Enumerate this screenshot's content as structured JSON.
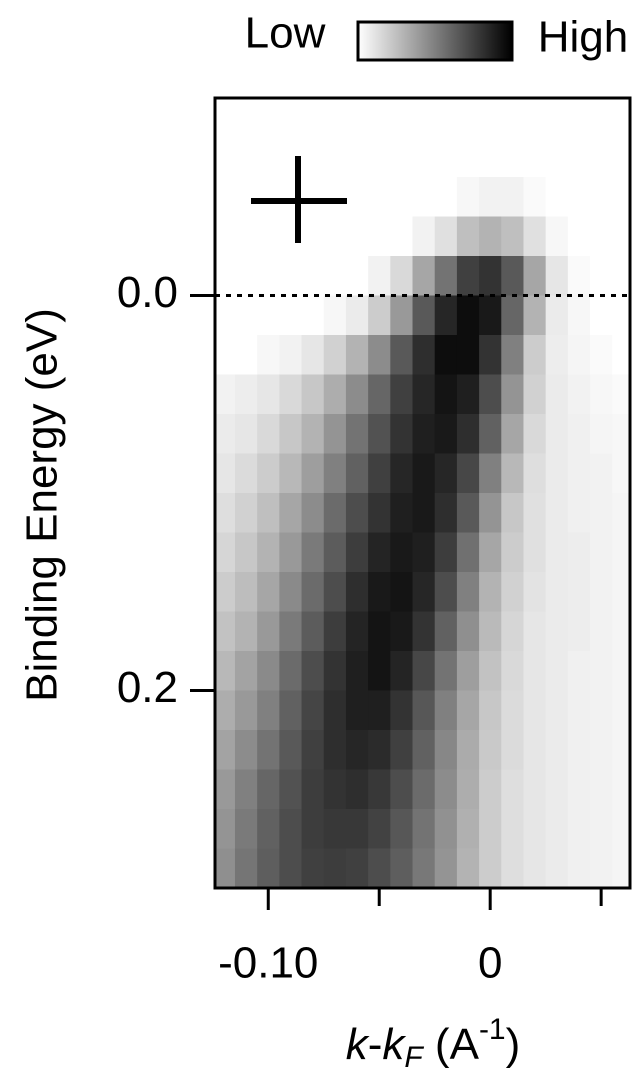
{
  "chart_data": {
    "type": "heatmap",
    "colormap": "grays",
    "ylabel": "Binding Energy (eV)",
    "xlabel": [
      "k",
      "-",
      "k",
      "F",
      " (A",
      "-1",
      ")"
    ],
    "colorbar_labels": [
      "Low",
      "High"
    ],
    "xlim": [
      -0.124,
      0.063
    ],
    "ylim": [
      0.3,
      -0.1
    ],
    "xticks": [
      {
        "value": -0.1,
        "label": "-0.10"
      },
      0
    ],
    "xminorticks": [
      -0.05,
      0.05
    ],
    "yticks": [
      {
        "value": 0,
        "label": "0.0"
      },
      {
        "value": 0.2,
        "label": "0.2"
      }
    ],
    "hline": 0,
    "x": [
      -0.12,
      -0.11,
      -0.1,
      -0.09,
      -0.08,
      -0.07,
      -0.06,
      -0.05,
      -0.04,
      -0.03,
      -0.02,
      -0.01,
      0,
      0.01,
      0.02,
      0.03,
      0.04,
      0.05,
      0.06
    ],
    "y": [
      -0.09,
      -0.07,
      -0.05,
      -0.03,
      -0.01,
      0.01,
      0.03,
      0.05,
      0.07,
      0.09,
      0.11,
      0.13,
      0.15,
      0.17,
      0.19,
      0.21,
      0.23,
      0.25,
      0.27,
      0.29
    ],
    "z": [
      [
        0,
        0,
        0,
        0,
        0,
        0,
        0,
        0,
        0,
        0,
        0,
        0,
        0,
        0,
        0,
        0,
        0,
        0,
        0
      ],
      [
        0,
        0,
        0,
        0,
        0,
        0,
        0,
        0,
        0,
        0,
        0,
        0,
        0,
        0,
        0,
        0,
        0,
        0,
        0
      ],
      [
        0,
        0,
        0,
        0,
        0,
        0,
        0,
        0,
        0,
        0,
        0,
        0.03,
        0.05,
        0.05,
        0.02,
        0,
        0,
        0,
        0
      ],
      [
        0,
        0,
        0,
        0,
        0,
        0,
        0,
        0,
        0,
        0.05,
        0.12,
        0.25,
        0.3,
        0.25,
        0.12,
        0.03,
        0,
        0,
        0
      ],
      [
        0,
        0,
        0,
        0,
        0,
        0,
        0,
        0.05,
        0.15,
        0.35,
        0.55,
        0.75,
        0.8,
        0.65,
        0.35,
        0.1,
        0.02,
        0,
        0
      ],
      [
        0,
        0,
        0,
        0,
        0,
        0.03,
        0.08,
        0.2,
        0.4,
        0.65,
        0.85,
        0.95,
        0.9,
        0.6,
        0.3,
        0.08,
        0.03,
        0,
        0
      ],
      [
        0,
        0,
        0.03,
        0.05,
        0.1,
        0.18,
        0.3,
        0.45,
        0.65,
        0.82,
        0.95,
        0.95,
        0.8,
        0.5,
        0.2,
        0.07,
        0.04,
        0.02,
        0
      ],
      [
        0.05,
        0.07,
        0.1,
        0.15,
        0.22,
        0.32,
        0.45,
        0.6,
        0.75,
        0.85,
        0.92,
        0.88,
        0.7,
        0.42,
        0.18,
        0.08,
        0.05,
        0.03,
        0.02
      ],
      [
        0.08,
        0.1,
        0.15,
        0.22,
        0.3,
        0.42,
        0.55,
        0.68,
        0.8,
        0.88,
        0.9,
        0.82,
        0.62,
        0.35,
        0.15,
        0.08,
        0.06,
        0.04,
        0.03
      ],
      [
        0.1,
        0.14,
        0.2,
        0.28,
        0.38,
        0.5,
        0.62,
        0.75,
        0.85,
        0.9,
        0.85,
        0.72,
        0.5,
        0.28,
        0.13,
        0.08,
        0.06,
        0.05,
        0.03
      ],
      [
        0.13,
        0.18,
        0.25,
        0.35,
        0.45,
        0.58,
        0.7,
        0.8,
        0.88,
        0.9,
        0.82,
        0.65,
        0.42,
        0.22,
        0.12,
        0.08,
        0.06,
        0.05,
        0.04
      ],
      [
        0.16,
        0.22,
        0.3,
        0.4,
        0.52,
        0.64,
        0.76,
        0.86,
        0.9,
        0.88,
        0.76,
        0.56,
        0.35,
        0.2,
        0.12,
        0.08,
        0.07,
        0.05,
        0.04
      ],
      [
        0.2,
        0.26,
        0.35,
        0.46,
        0.58,
        0.7,
        0.82,
        0.9,
        0.92,
        0.85,
        0.7,
        0.5,
        0.3,
        0.18,
        0.11,
        0.08,
        0.07,
        0.05,
        0.04
      ],
      [
        0.24,
        0.3,
        0.4,
        0.52,
        0.64,
        0.76,
        0.86,
        0.92,
        0.9,
        0.8,
        0.62,
        0.44,
        0.27,
        0.16,
        0.1,
        0.08,
        0.07,
        0.05,
        0.04
      ],
      [
        0.28,
        0.36,
        0.46,
        0.58,
        0.7,
        0.8,
        0.88,
        0.92,
        0.86,
        0.72,
        0.55,
        0.38,
        0.24,
        0.15,
        0.1,
        0.08,
        0.06,
        0.05,
        0.04
      ],
      [
        0.32,
        0.4,
        0.5,
        0.62,
        0.73,
        0.82,
        0.88,
        0.88,
        0.8,
        0.66,
        0.5,
        0.35,
        0.22,
        0.14,
        0.1,
        0.08,
        0.06,
        0.05,
        0.04
      ],
      [
        0.36,
        0.45,
        0.55,
        0.65,
        0.75,
        0.82,
        0.85,
        0.83,
        0.75,
        0.62,
        0.47,
        0.33,
        0.21,
        0.14,
        0.1,
        0.08,
        0.06,
        0.05,
        0.04
      ],
      [
        0.4,
        0.5,
        0.6,
        0.68,
        0.76,
        0.8,
        0.82,
        0.78,
        0.7,
        0.58,
        0.45,
        0.32,
        0.2,
        0.13,
        0.1,
        0.08,
        0.06,
        0.05,
        0.04
      ],
      [
        0.42,
        0.52,
        0.62,
        0.7,
        0.76,
        0.78,
        0.78,
        0.74,
        0.66,
        0.55,
        0.43,
        0.31,
        0.2,
        0.13,
        0.1,
        0.08,
        0.06,
        0.05,
        0.04
      ],
      [
        0.44,
        0.54,
        0.63,
        0.7,
        0.75,
        0.76,
        0.75,
        0.7,
        0.63,
        0.53,
        0.42,
        0.3,
        0.2,
        0.13,
        0.1,
        0.08,
        0.06,
        0.05,
        0.04
      ]
    ]
  }
}
